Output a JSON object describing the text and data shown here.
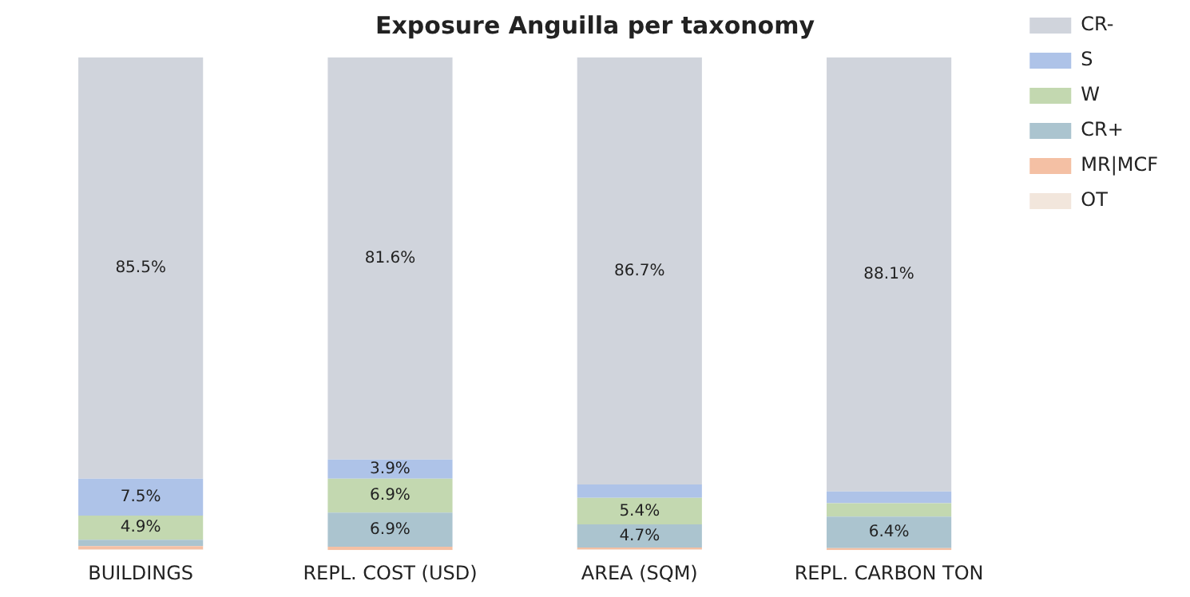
{
  "chart_data": {
    "type": "bar",
    "title": "Exposure Anguilla per taxonomy",
    "categories": [
      "BUILDINGS",
      "REPL. COST (USD)",
      "AREA (SQM)",
      "REPL. CARBON TON"
    ],
    "stacked": true,
    "ylim": [
      0,
      100
    ],
    "tick_labels": "x",
    "legend": "right",
    "grid": false,
    "series": [
      {
        "name": "OT",
        "color": "#f2e6dc",
        "values": [
          0.1,
          0,
          0.1,
          0
        ],
        "value_labels": [
          null,
          null,
          null,
          null
        ]
      },
      {
        "name": "MR|MCF",
        "color": "#f4c0a4",
        "values": [
          0.7,
          0.7,
          0.4,
          0.4
        ],
        "value_labels": [
          null,
          null,
          null,
          null
        ]
      },
      {
        "name": "CR+",
        "color": "#abc4cf",
        "values": [
          1.3,
          6.9,
          4.7,
          6.4
        ],
        "value_labels": [
          null,
          "6.9%",
          "4.7%",
          "6.4%"
        ]
      },
      {
        "name": "W",
        "color": "#c3d8b0",
        "values": [
          4.9,
          6.9,
          5.4,
          2.7
        ],
        "value_labels": [
          "4.9%",
          "6.9%",
          "5.4%",
          null
        ]
      },
      {
        "name": "S",
        "color": "#aec3e8",
        "values": [
          7.5,
          3.9,
          2.7,
          2.4
        ],
        "value_labels": [
          "7.5%",
          "3.9%",
          null,
          null
        ]
      },
      {
        "name": "CR-",
        "color": "#d0d4dc",
        "values": [
          85.5,
          81.6,
          86.7,
          88.1
        ],
        "value_labels": [
          "85.5%",
          "81.6%",
          "86.7%",
          "88.1%"
        ]
      }
    ]
  }
}
